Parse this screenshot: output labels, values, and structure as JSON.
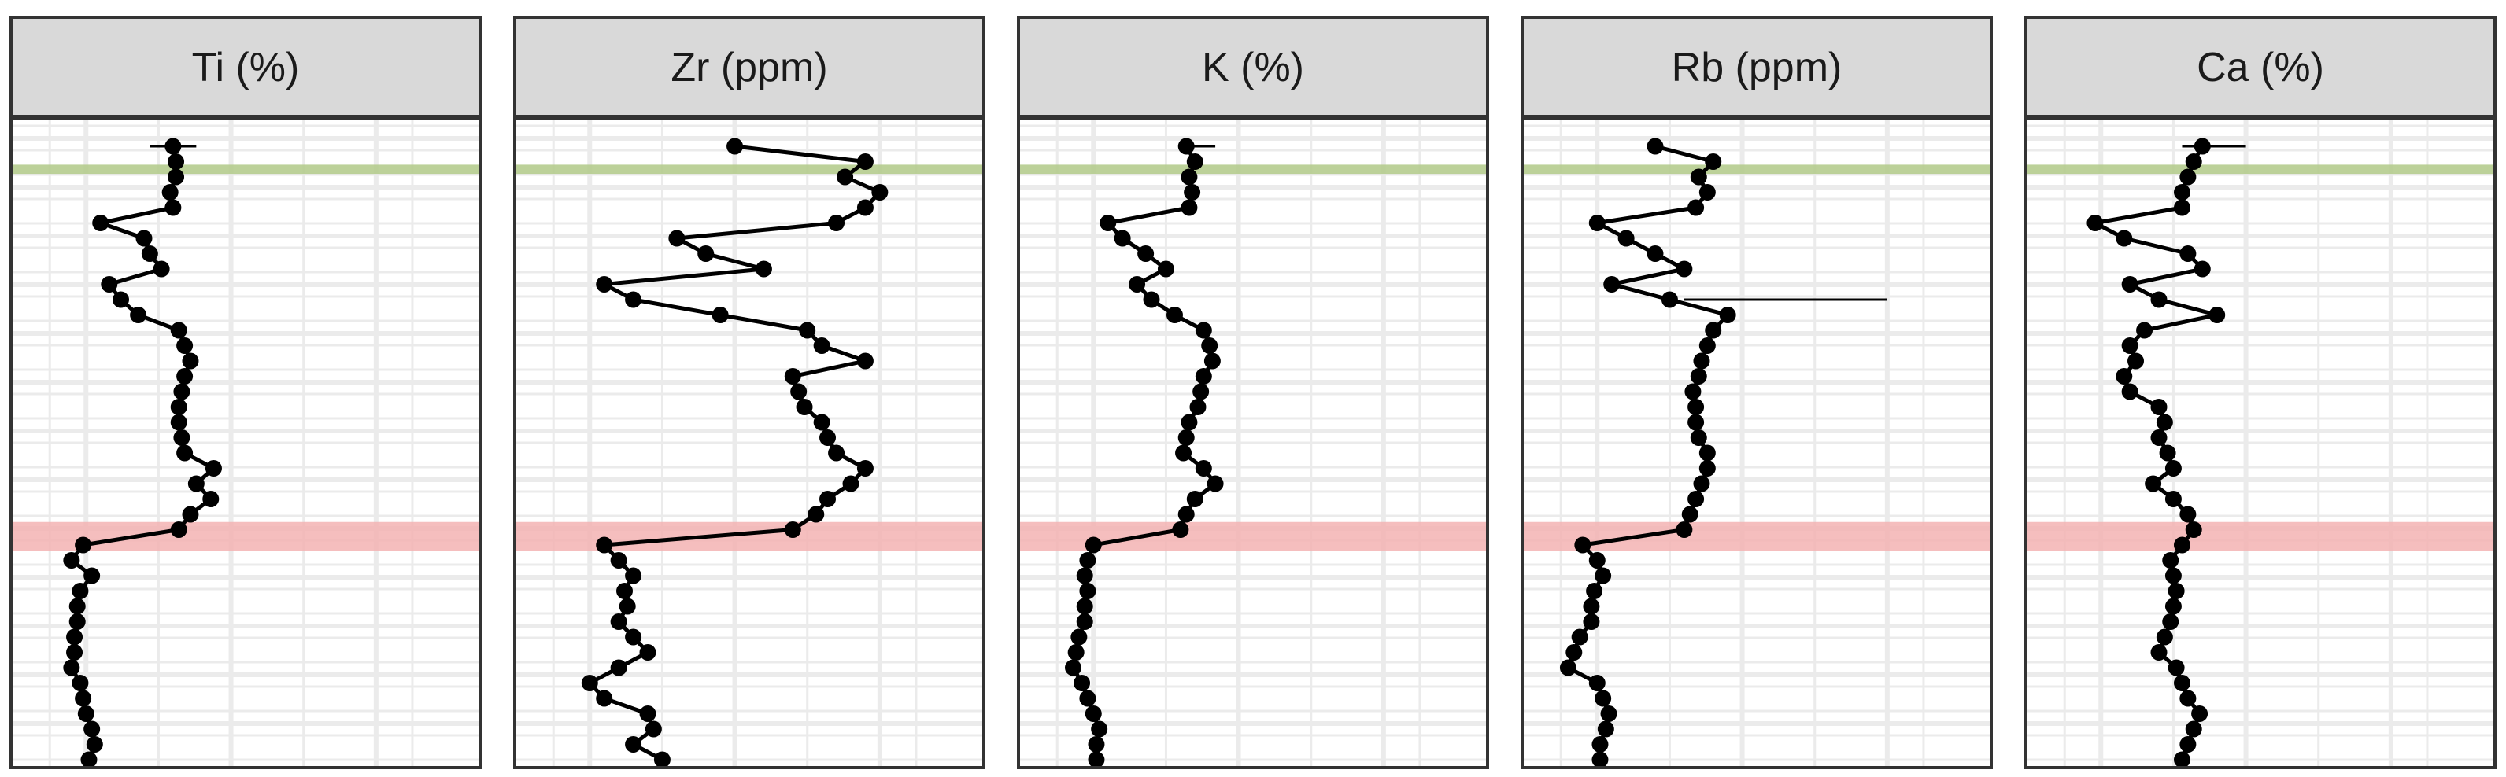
{
  "chart_data": {
    "type": "line",
    "layout": "faceted depth profiles, 5 panels side by side",
    "axes": "no tick labels, no axis titles printed",
    "grid": true,
    "shared_y": "unlabelled depth axis, top to bottom, 41 samples",
    "highlight_bands": [
      {
        "name": "green band",
        "color": "#b5cc8e",
        "start_index": 1.2,
        "end_index": 1.8
      },
      {
        "name": "red band",
        "color": "#f3b3b3",
        "start_index": 24.5,
        "end_index": 26.4
      }
    ],
    "colors": {
      "strip_background": "#d9d9d9",
      "panel_border": "#333333",
      "grid": "#ebebeb",
      "points": "#000000"
    },
    "panels": [
      {
        "label": "Ti (%)",
        "values": [
          0.3,
          0.31,
          0.31,
          0.29,
          0.3,
          0.05,
          0.2,
          0.22,
          0.26,
          0.08,
          0.12,
          0.18,
          0.32,
          0.34,
          0.36,
          0.34,
          0.33,
          0.32,
          0.32,
          0.33,
          0.34,
          0.44,
          0.38,
          0.43,
          0.36,
          0.32,
          -0.01,
          -0.05,
          0.02,
          -0.02,
          -0.03,
          -0.03,
          -0.04,
          -0.04,
          -0.05,
          -0.02,
          -0.01,
          0.0,
          0.02,
          0.03,
          0.01
        ],
        "error_bars": [
          {
            "index": 0,
            "low": 0.22,
            "high": 0.38
          }
        ]
      },
      {
        "label": "Zr (ppm)",
        "values": [
          0.5,
          0.95,
          0.88,
          1.0,
          0.95,
          0.85,
          0.3,
          0.4,
          0.6,
          0.05,
          0.15,
          0.45,
          0.75,
          0.8,
          0.95,
          0.7,
          0.72,
          0.74,
          0.8,
          0.82,
          0.85,
          0.95,
          0.9,
          0.82,
          0.78,
          0.7,
          0.05,
          0.1,
          0.15,
          0.12,
          0.13,
          0.1,
          0.15,
          0.2,
          0.1,
          0.0,
          0.05,
          0.2,
          0.22,
          0.15,
          0.25
        ]
      },
      {
        "label": "K (%)",
        "values": [
          0.32,
          0.35,
          0.33,
          0.34,
          0.33,
          0.05,
          0.1,
          0.18,
          0.25,
          0.15,
          0.2,
          0.28,
          0.38,
          0.4,
          0.41,
          0.38,
          0.37,
          0.36,
          0.33,
          0.32,
          0.31,
          0.38,
          0.42,
          0.35,
          0.32,
          0.3,
          0.0,
          -0.02,
          -0.03,
          -0.02,
          -0.03,
          -0.03,
          -0.05,
          -0.06,
          -0.07,
          -0.04,
          -0.02,
          0.0,
          0.02,
          0.01,
          0.01
        ],
        "error_bars": [
          {
            "index": 0,
            "low": 0.3,
            "high": 0.42
          }
        ]
      },
      {
        "label": "Rb (ppm)",
        "values": [
          0.2,
          0.4,
          0.35,
          0.38,
          0.34,
          0.0,
          0.1,
          0.2,
          0.3,
          0.05,
          0.25,
          0.45,
          0.4,
          0.38,
          0.36,
          0.35,
          0.33,
          0.34,
          0.34,
          0.35,
          0.38,
          0.38,
          0.36,
          0.34,
          0.32,
          0.3,
          -0.05,
          0.0,
          0.02,
          -0.01,
          -0.02,
          -0.02,
          -0.06,
          -0.08,
          -0.1,
          0.0,
          0.02,
          0.04,
          0.03,
          0.01,
          0.01
        ],
        "error_bars": [
          {
            "index": 10,
            "low": 0.3,
            "high": 1.0
          }
        ]
      },
      {
        "label": "Ca (%)",
        "values": [
          0.35,
          0.32,
          0.3,
          0.28,
          0.28,
          -0.02,
          0.08,
          0.3,
          0.35,
          0.1,
          0.2,
          0.4,
          0.15,
          0.1,
          0.12,
          0.08,
          0.1,
          0.2,
          0.22,
          0.2,
          0.23,
          0.25,
          0.18,
          0.25,
          0.3,
          0.32,
          0.28,
          0.24,
          0.25,
          0.26,
          0.25,
          0.24,
          0.22,
          0.2,
          0.26,
          0.28,
          0.3,
          0.34,
          0.32,
          0.3,
          0.28
        ],
        "error_bars": [
          {
            "index": 0,
            "low": 0.28,
            "high": 0.5
          }
        ]
      }
    ]
  }
}
